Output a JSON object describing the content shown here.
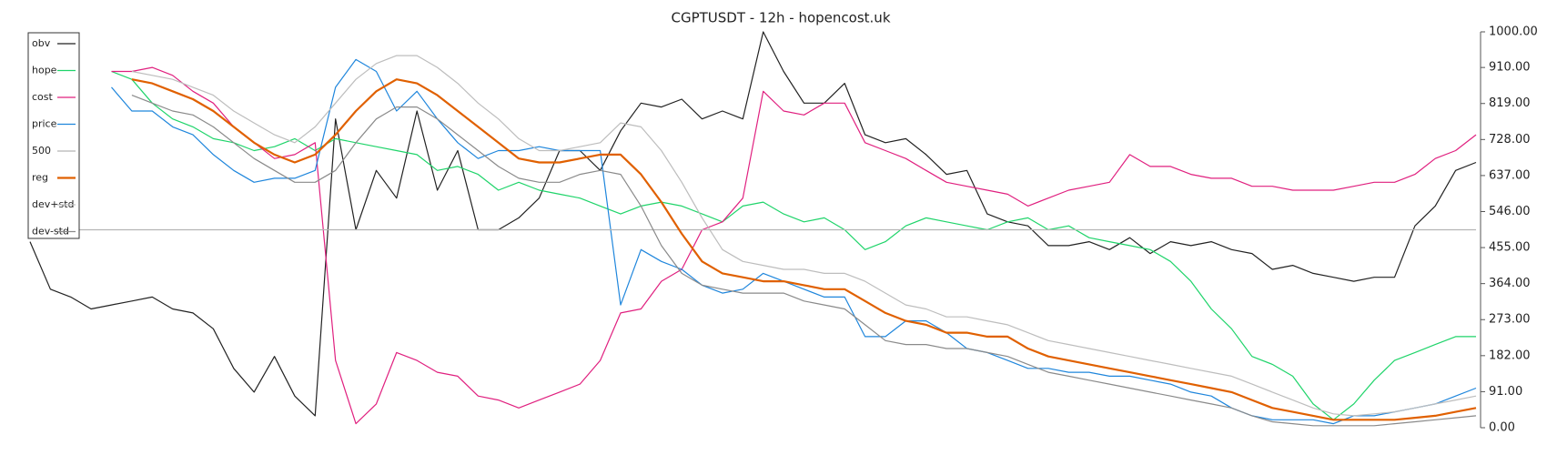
{
  "chart_data": {
    "type": "line",
    "title": "CGPTUSDT - 12h - hopencost.uk",
    "ylim": [
      0,
      1000
    ],
    "yticks": [
      {
        "value": 0,
        "label": "0.00"
      },
      {
        "value": 91,
        "label": "91.00"
      },
      {
        "value": 182,
        "label": "182.00"
      },
      {
        "value": 273,
        "label": "273.00"
      },
      {
        "value": 364,
        "label": "364.00"
      },
      {
        "value": 455,
        "label": "455.00"
      },
      {
        "value": 546,
        "label": "546.00"
      },
      {
        "value": 637,
        "label": "637.00"
      },
      {
        "value": 728,
        "label": "728.00"
      },
      {
        "value": 819,
        "label": "819.00"
      },
      {
        "value": 910,
        "label": "910.00"
      },
      {
        "value": 1000,
        "label": "1000.00"
      }
    ],
    "legend": "upper left",
    "series": [
      {
        "name": "obv",
        "color": "#222222",
        "values": [
          470,
          350,
          330,
          300,
          310,
          320,
          330,
          300,
          290,
          250,
          150,
          90,
          180,
          80,
          30,
          780,
          500,
          650,
          580,
          800,
          600,
          700,
          500,
          500,
          530,
          580,
          700,
          700,
          650,
          750,
          820,
          810,
          830,
          780,
          800,
          780,
          1000,
          900,
          820,
          820,
          870,
          740,
          720,
          730,
          690,
          640,
          650,
          540,
          520,
          510,
          460,
          460,
          470,
          450,
          480,
          440,
          470,
          460,
          470,
          450,
          440,
          400,
          410,
          390,
          380,
          370,
          380,
          380,
          510,
          560,
          650,
          670
        ]
      },
      {
        "name": "hope",
        "color": "#1fd46a",
        "values": [
          null,
          null,
          null,
          null,
          900,
          880,
          820,
          780,
          760,
          730,
          720,
          700,
          710,
          730,
          700,
          730,
          720,
          710,
          700,
          690,
          650,
          660,
          640,
          600,
          620,
          600,
          590,
          580,
          560,
          540,
          560,
          570,
          560,
          540,
          520,
          560,
          570,
          540,
          520,
          530,
          500,
          450,
          470,
          510,
          530,
          520,
          510,
          500,
          520,
          530,
          500,
          510,
          480,
          470,
          460,
          450,
          420,
          370,
          300,
          250,
          180,
          160,
          130,
          60,
          20,
          60,
          120,
          170,
          190,
          210,
          230,
          230
        ]
      },
      {
        "name": "cost",
        "color": "#e0207f",
        "values": [
          null,
          null,
          null,
          null,
          900,
          900,
          910,
          890,
          850,
          820,
          760,
          720,
          680,
          690,
          720,
          170,
          10,
          60,
          190,
          170,
          140,
          130,
          80,
          70,
          50,
          70,
          90,
          110,
          170,
          290,
          300,
          370,
          400,
          500,
          520,
          580,
          850,
          800,
          790,
          820,
          820,
          720,
          700,
          680,
          650,
          620,
          610,
          600,
          590,
          560,
          580,
          600,
          610,
          620,
          690,
          660,
          660,
          640,
          630,
          630,
          610,
          610,
          600,
          600,
          600,
          610,
          620,
          620,
          640,
          680,
          700,
          740
        ]
      },
      {
        "name": "price",
        "color": "#1f86dc",
        "values": [
          null,
          null,
          null,
          null,
          860,
          800,
          800,
          760,
          740,
          690,
          650,
          620,
          630,
          630,
          650,
          860,
          930,
          900,
          800,
          850,
          780,
          720,
          680,
          700,
          700,
          710,
          700,
          700,
          700,
          310,
          450,
          420,
          400,
          360,
          340,
          350,
          390,
          370,
          350,
          330,
          330,
          230,
          230,
          270,
          270,
          240,
          200,
          190,
          170,
          150,
          150,
          140,
          140,
          130,
          130,
          120,
          110,
          90,
          80,
          50,
          30,
          20,
          20,
          20,
          10,
          30,
          30,
          40,
          50,
          60,
          80,
          100
        ]
      },
      {
        "name": "500",
        "color": "#b5b5b5",
        "values": [
          500,
          500,
          500,
          500,
          500,
          500,
          500,
          500,
          500,
          500,
          500,
          500,
          500,
          500,
          500,
          500,
          500,
          500,
          500,
          500,
          500,
          500,
          500,
          500,
          500,
          500,
          500,
          500,
          500,
          500,
          500,
          500,
          500,
          500,
          500,
          500,
          500,
          500,
          500,
          500,
          500,
          500,
          500,
          500,
          500,
          500,
          500,
          500,
          500,
          500,
          500,
          500,
          500,
          500,
          500,
          500,
          500,
          500,
          500,
          500,
          500,
          500,
          500,
          500,
          500,
          500,
          500,
          500,
          500,
          500,
          500,
          500
        ]
      },
      {
        "name": "reg",
        "color": "#e06000",
        "values": [
          null,
          null,
          null,
          null,
          null,
          880,
          870,
          850,
          830,
          800,
          760,
          720,
          690,
          670,
          690,
          740,
          800,
          850,
          880,
          870,
          840,
          800,
          760,
          720,
          680,
          670,
          670,
          680,
          690,
          690,
          640,
          570,
          490,
          420,
          390,
          380,
          370,
          370,
          360,
          350,
          350,
          320,
          290,
          270,
          260,
          240,
          240,
          230,
          230,
          200,
          180,
          170,
          160,
          150,
          140,
          130,
          120,
          110,
          100,
          90,
          70,
          50,
          40,
          30,
          20,
          20,
          20,
          20,
          25,
          30,
          40,
          50
        ]
      },
      {
        "name": "dev+std",
        "color": "#bdbdbd",
        "values": [
          null,
          null,
          null,
          null,
          null,
          900,
          890,
          880,
          860,
          840,
          800,
          770,
          740,
          720,
          760,
          820,
          880,
          920,
          940,
          940,
          910,
          870,
          820,
          780,
          730,
          700,
          700,
          710,
          720,
          770,
          760,
          700,
          620,
          530,
          450,
          420,
          410,
          400,
          400,
          390,
          390,
          370,
          340,
          310,
          300,
          280,
          280,
          270,
          260,
          240,
          220,
          210,
          200,
          190,
          180,
          170,
          160,
          150,
          140,
          130,
          110,
          90,
          70,
          50,
          35,
          30,
          35,
          40,
          50,
          60,
          70,
          80
        ]
      },
      {
        "name": "dev-std",
        "color": "#8a8a8a",
        "values": [
          null,
          null,
          null,
          null,
          null,
          840,
          820,
          800,
          790,
          760,
          720,
          680,
          650,
          620,
          620,
          650,
          720,
          780,
          810,
          810,
          780,
          740,
          700,
          660,
          630,
          620,
          620,
          640,
          650,
          640,
          560,
          460,
          390,
          360,
          350,
          340,
          340,
          340,
          320,
          310,
          300,
          260,
          220,
          210,
          210,
          200,
          200,
          190,
          180,
          160,
          140,
          130,
          120,
          110,
          100,
          90,
          80,
          70,
          60,
          50,
          30,
          15,
          10,
          5,
          5,
          5,
          5,
          10,
          15,
          20,
          25,
          30
        ]
      }
    ]
  }
}
